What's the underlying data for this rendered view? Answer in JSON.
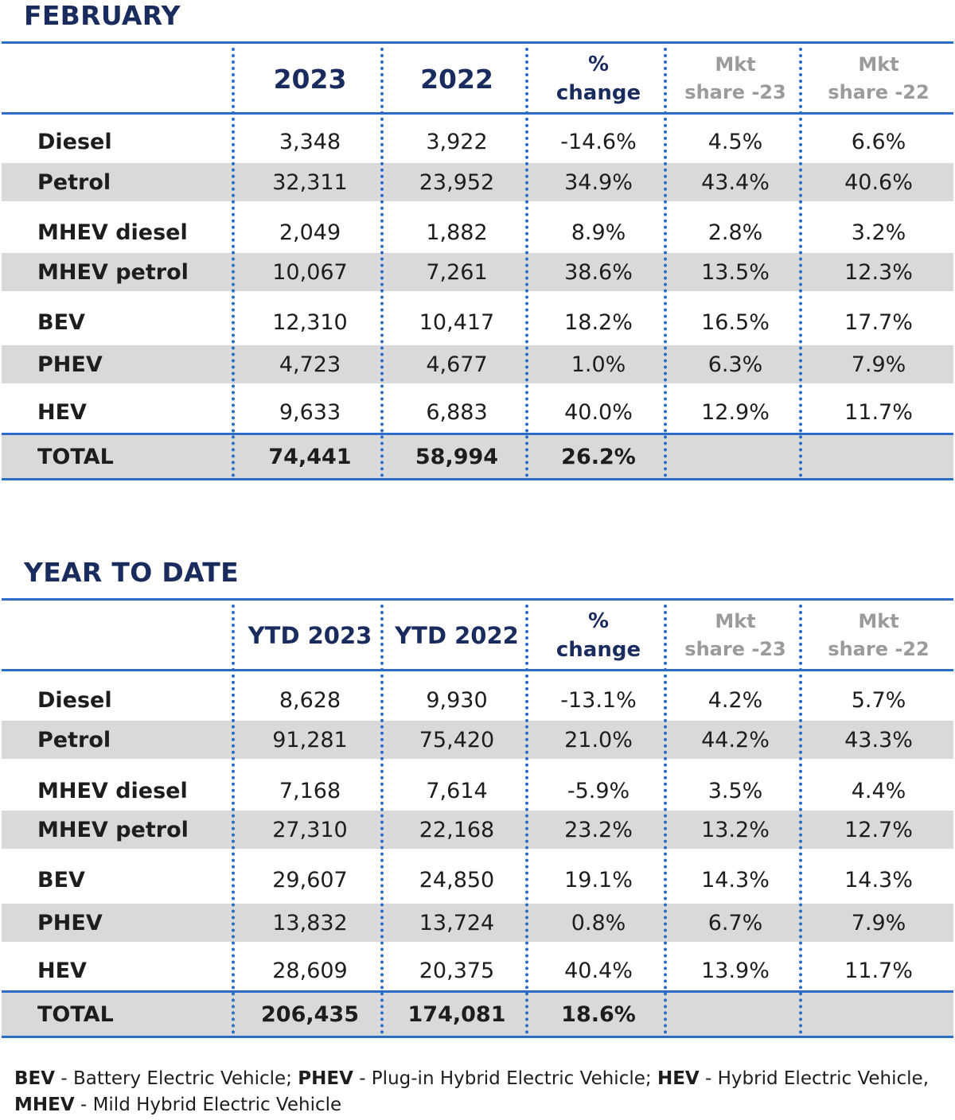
{
  "sections": [
    {
      "title": "FEBRUARY",
      "headers": {
        "col1": "2023",
        "col2": "2022",
        "pct_line1": "%",
        "pct_line2": "change",
        "mkt23_line1": "Mkt",
        "mkt23_line2": "share -23",
        "mkt22_line1": "Mkt",
        "mkt22_line2": "share -22"
      },
      "rows": [
        {
          "label": "Diesel",
          "v1": "3,348",
          "v2": "3,922",
          "pct": "-14.6%",
          "m23": "4.5%",
          "m22": "6.6%"
        },
        {
          "label": "Petrol",
          "v1": "32,311",
          "v2": "23,952",
          "pct": "34.9%",
          "m23": "43.4%",
          "m22": "40.6%"
        },
        {
          "label": "MHEV diesel",
          "v1": "2,049",
          "v2": "1,882",
          "pct": "8.9%",
          "m23": "2.8%",
          "m22": "3.2%"
        },
        {
          "label": "MHEV petrol",
          "v1": "10,067",
          "v2": "7,261",
          "pct": "38.6%",
          "m23": "13.5%",
          "m22": "12.3%"
        },
        {
          "label": "BEV",
          "v1": "12,310",
          "v2": "10,417",
          "pct": "18.2%",
          "m23": "16.5%",
          "m22": "17.7%"
        },
        {
          "label": "PHEV",
          "v1": "4,723",
          "v2": "4,677",
          "pct": "1.0%",
          "m23": "6.3%",
          "m22": "7.9%"
        },
        {
          "label": "HEV",
          "v1": "9,633",
          "v2": "6,883",
          "pct": "40.0%",
          "m23": "12.9%",
          "m22": "11.7%"
        }
      ],
      "total": {
        "label": "TOTAL",
        "v1": "74,441",
        "v2": "58,994",
        "pct": "26.2%",
        "m23": "",
        "m22": ""
      }
    },
    {
      "title": "YEAR TO DATE",
      "headers": {
        "col1": "YTD 2023",
        "col2": "YTD 2022",
        "pct_line1": "%",
        "pct_line2": "change",
        "mkt23_line1": "Mkt",
        "mkt23_line2": "share -23",
        "mkt22_line1": "Mkt",
        "mkt22_line2": "share -22"
      },
      "rows": [
        {
          "label": "Diesel",
          "v1": "8,628",
          "v2": "9,930",
          "pct": "-13.1%",
          "m23": "4.2%",
          "m22": "5.7%"
        },
        {
          "label": "Petrol",
          "v1": "91,281",
          "v2": "75,420",
          "pct": "21.0%",
          "m23": "44.2%",
          "m22": "43.3%"
        },
        {
          "label": "MHEV diesel",
          "v1": "7,168",
          "v2": "7,614",
          "pct": "-5.9%",
          "m23": "3.5%",
          "m22": "4.4%"
        },
        {
          "label": "MHEV petrol",
          "v1": "27,310",
          "v2": "22,168",
          "pct": "23.2%",
          "m23": "13.2%",
          "m22": "12.7%"
        },
        {
          "label": "BEV",
          "v1": "29,607",
          "v2": "24,850",
          "pct": "19.1%",
          "m23": "14.3%",
          "m22": "14.3%"
        },
        {
          "label": "PHEV",
          "v1": "13,832",
          "v2": "13,724",
          "pct": "0.8%",
          "m23": "6.7%",
          "m22": "7.9%"
        },
        {
          "label": "HEV",
          "v1": "28,609",
          "v2": "20,375",
          "pct": "40.4%",
          "m23": "13.9%",
          "m22": "11.7%"
        }
      ],
      "total": {
        "label": "TOTAL",
        "v1": "206,435",
        "v2": "174,081",
        "pct": "18.6%",
        "m23": "",
        "m22": ""
      }
    }
  ],
  "footnote": {
    "bev_abbr": "BEV",
    "bev_text": " - Battery Electric Vehicle; ",
    "phev_abbr": "PHEV",
    "phev_text": " - Plug-in Hybrid Electric Vehicle; ",
    "hev_abbr": "HEV",
    "hev_text": " - Hybrid Electric Vehicle,",
    "mhev_abbr": "MHEV",
    "mhev_text": " - Mild Hybrid Electric Vehicle"
  },
  "colors": {
    "title": "#1a2b5e",
    "rule": "#2a6cc6",
    "shade": "#d9d9d9",
    "mkt_header": "#9b9b9b"
  }
}
